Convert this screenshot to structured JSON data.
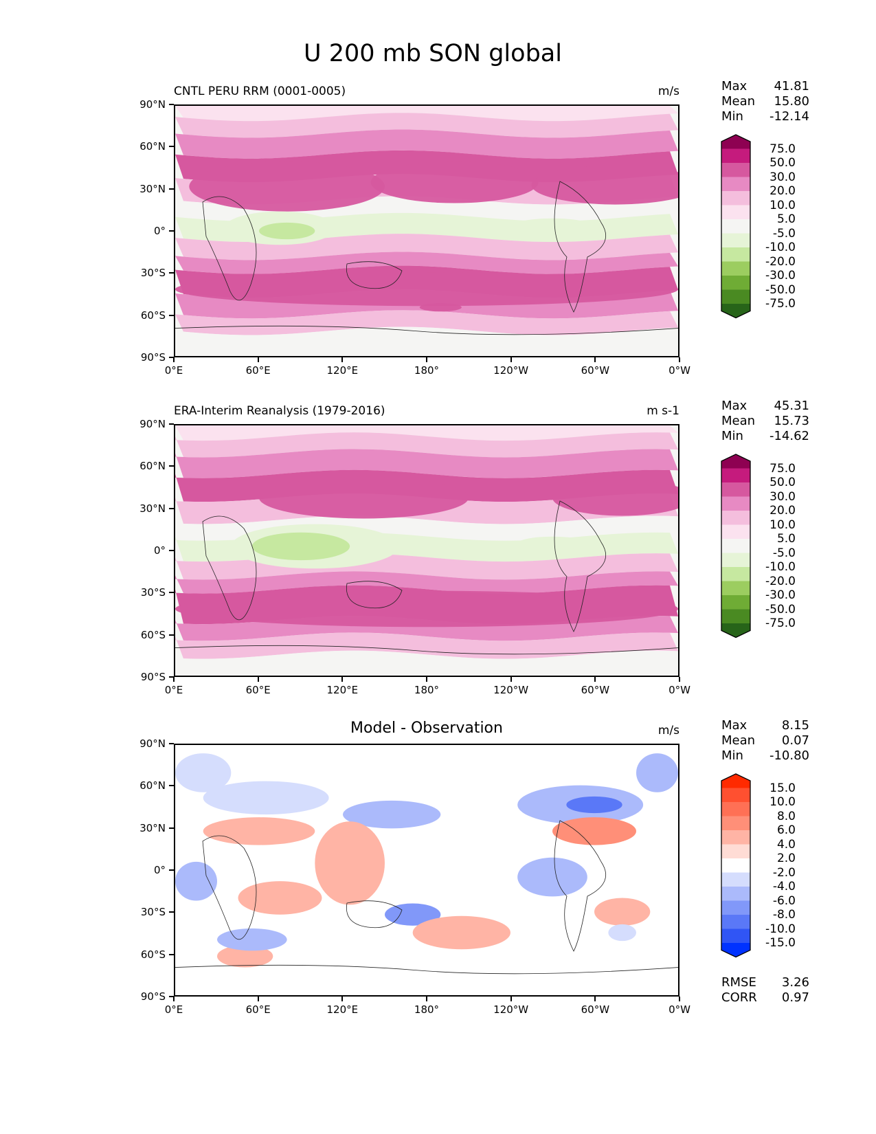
{
  "chart_data": {
    "type": "heatmap",
    "title": "U 200 mb SON global",
    "panels": [
      {
        "id": "model",
        "title": "CNTL PERU RRM (0001-0005)",
        "units": "m/s",
        "stats": {
          "Max": "41.81",
          "Mean": "15.80",
          "Min": "-12.14"
        },
        "colorbar": {
          "levels": [
            "75.0",
            "50.0",
            "30.0",
            "20.0",
            "10.0",
            "5.0",
            "-5.0",
            "-10.0",
            "-20.0",
            "-30.0",
            "-50.0",
            "-75.0"
          ],
          "colors": [
            "#8e0152",
            "#c51b7d",
            "#d6589f",
            "#e78ac3",
            "#f4bedd",
            "#fbe2ef",
            "#f5f5f3",
            "#e6f4d7",
            "#c6e8a0",
            "#9ccd60",
            "#6fac35",
            "#4a8a22",
            "#276419"
          ]
        },
        "bands": [
          {
            "lat": 82,
            "val": "5"
          },
          {
            "lat": 70,
            "val": "10"
          },
          {
            "lat": 55,
            "val": "20"
          },
          {
            "lat": 38,
            "val": "30"
          },
          {
            "lat": 22,
            "val": "10"
          },
          {
            "lat": 10,
            "val": "0"
          },
          {
            "lat": -5,
            "val": "-10"
          },
          {
            "lat": -18,
            "val": "10"
          },
          {
            "lat": -28,
            "val": "20"
          },
          {
            "lat": -45,
            "val": "30"
          },
          {
            "lat": -60,
            "val": "20"
          },
          {
            "lat": -72,
            "val": "10"
          },
          {
            "lat": -90,
            "val": "0"
          }
        ]
      },
      {
        "id": "obs",
        "title": "ERA-Interim Reanalysis (1979-2016)",
        "units": "m s-1",
        "stats": {
          "Max": "45.31",
          "Mean": "15.73",
          "Min": "-14.62"
        },
        "colorbar": {
          "levels": [
            "75.0",
            "50.0",
            "30.0",
            "20.0",
            "10.0",
            "5.0",
            "-5.0",
            "-10.0",
            "-20.0",
            "-30.0",
            "-50.0",
            "-75.0"
          ],
          "colors": [
            "#8e0152",
            "#c51b7d",
            "#d6589f",
            "#e78ac3",
            "#f4bedd",
            "#fbe2ef",
            "#f5f5f3",
            "#e6f4d7",
            "#c6e8a0",
            "#9ccd60",
            "#6fac35",
            "#4a8a22",
            "#276419"
          ]
        },
        "bands": [
          {
            "lat": 82,
            "val": "5"
          },
          {
            "lat": 70,
            "val": "10"
          },
          {
            "lat": 55,
            "val": "20"
          },
          {
            "lat": 38,
            "val": "30"
          },
          {
            "lat": 22,
            "val": "10"
          },
          {
            "lat": 10,
            "val": "0"
          },
          {
            "lat": -5,
            "val": "-10"
          },
          {
            "lat": -18,
            "val": "10"
          },
          {
            "lat": -28,
            "val": "20"
          },
          {
            "lat": -50,
            "val": "30"
          },
          {
            "lat": -62,
            "val": "20"
          },
          {
            "lat": -75,
            "val": "10"
          },
          {
            "lat": -90,
            "val": "0"
          }
        ]
      },
      {
        "id": "diff",
        "title": "Model - Observation",
        "units": "m/s",
        "stats": {
          "Max": "8.15",
          "Mean": "0.07",
          "Min": "-10.80"
        },
        "extra_stats": {
          "RMSE": "3.26",
          "CORR": "0.97"
        },
        "colorbar": {
          "levels": [
            "15.0",
            "10.0",
            "8.0",
            "6.0",
            "4.0",
            "2.0",
            "-2.0",
            "-4.0",
            "-6.0",
            "-8.0",
            "-10.0",
            "-15.0"
          ],
          "colors": [
            "#ff2a00",
            "#ff5030",
            "#ff7055",
            "#ff8f78",
            "#ffb4a5",
            "#ffdcd5",
            "#ffffff",
            "#d5ddfd",
            "#abbafb",
            "#8198f9",
            "#5a78f7",
            "#3055f5",
            "#0032ff"
          ]
        }
      }
    ],
    "xticks": [
      "0°E",
      "60°E",
      "120°E",
      "180°",
      "120°W",
      "60°W",
      "0°W"
    ],
    "yticks": [
      "90°N",
      "60°N",
      "30°N",
      "0°",
      "30°S",
      "60°S",
      "90°S"
    ],
    "xlim": [
      0,
      360
    ],
    "ylim": [
      -90,
      90
    ]
  }
}
